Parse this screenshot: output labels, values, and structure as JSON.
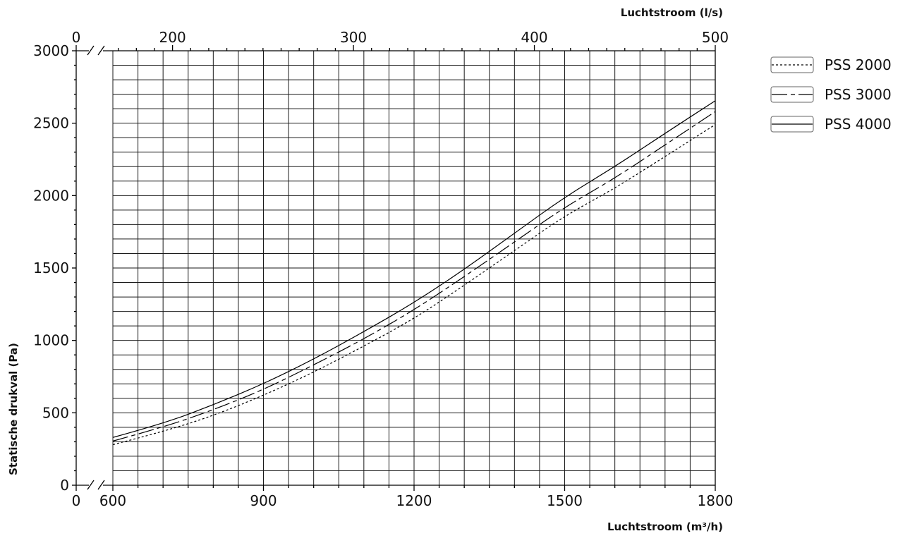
{
  "chart_data": {
    "type": "line",
    "xlabel": "Luchtstroom  (m³/h)",
    "ylabel": "Statische drukval (Pa)",
    "x2label": "Luchtstroom (l/s)",
    "xlim": [
      600,
      1800
    ],
    "ylim": [
      0,
      3000
    ],
    "x2lim": [
      167,
      500
    ],
    "axis_break": true,
    "x_ticks": [
      "600",
      "900",
      "1200",
      "1500",
      "1800"
    ],
    "x_origin_label": "0",
    "y_ticks": [
      "0",
      "500",
      "1000",
      "1500",
      "2000",
      "2500",
      "3000"
    ],
    "x2_ticks": [
      "200",
      "300",
      "400",
      "500"
    ],
    "x2_origin_label": "0",
    "grid": true,
    "legend_position": "right",
    "series": [
      {
        "name": "PSS 2000",
        "style": "dotted",
        "x": [
          600,
          700,
          800,
          900,
          1000,
          1100,
          1200,
          1300,
          1400,
          1500,
          1600,
          1700,
          1800
        ],
        "values": [
          280,
          370,
          480,
          620,
          780,
          960,
          1150,
          1380,
          1620,
          1860,
          2050,
          2270,
          2490
        ]
      },
      {
        "name": "PSS 3000",
        "style": "dash-dot",
        "x": [
          600,
          700,
          800,
          900,
          1000,
          1100,
          1200,
          1300,
          1400,
          1500,
          1600,
          1700,
          1800
        ],
        "values": [
          305,
          400,
          520,
          660,
          830,
          1010,
          1210,
          1440,
          1680,
          1920,
          2120,
          2350,
          2580
        ]
      },
      {
        "name": "PSS 4000",
        "style": "solid",
        "x": [
          600,
          700,
          800,
          900,
          1000,
          1100,
          1200,
          1300,
          1400,
          1500,
          1600,
          1700,
          1800
        ],
        "values": [
          330,
          425,
          555,
          700,
          870,
          1060,
          1260,
          1490,
          1740,
          1990,
          2200,
          2430,
          2655
        ]
      }
    ]
  }
}
